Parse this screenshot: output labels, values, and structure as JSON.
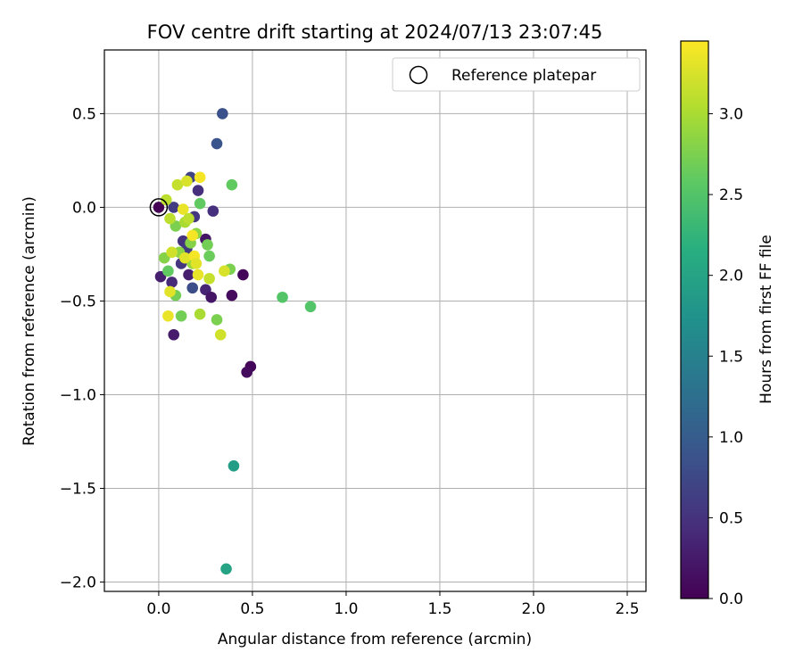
{
  "chart_data": {
    "type": "scatter",
    "title": "FOV centre drift starting at 2024/07/13 23:07:45",
    "xlabel": "Angular distance from reference (arcmin)",
    "ylabel": "Rotation from reference (arcmin)",
    "xlim": [
      -0.29,
      2.6
    ],
    "ylim": [
      -2.05,
      0.84
    ],
    "xticks": [
      0.0,
      0.5,
      1.0,
      1.5,
      2.0,
      2.5
    ],
    "xtick_labels": [
      "0.0",
      "0.5",
      "1.0",
      "1.5",
      "2.0",
      "2.5"
    ],
    "yticks": [
      0.5,
      0.0,
      -0.5,
      -1.0,
      -1.5,
      -2.0
    ],
    "ytick_labels": [
      "0.5",
      "0.0",
      "−0.5",
      "−1.0",
      "−1.5",
      "−2.0"
    ],
    "grid": true,
    "legend": {
      "label": "Reference platepar",
      "location": "upper-right",
      "marker": "open-circle"
    },
    "reference_point": {
      "x": 0.0,
      "y": 0.0
    },
    "colorbar": {
      "label": "Hours from first FF file",
      "colormap": "viridis",
      "range": [
        0.0,
        3.45
      ],
      "ticks": [
        0.0,
        0.5,
        1.0,
        1.5,
        2.0,
        2.5,
        3.0
      ],
      "tick_labels": [
        "0.0",
        "0.5",
        "1.0",
        "1.5",
        "2.0",
        "2.5",
        "3.0"
      ]
    },
    "points": [
      {
        "x": 0.0,
        "y": 0.0,
        "t": 0.0
      },
      {
        "x": 0.01,
        "y": -0.37,
        "t": 0.3
      },
      {
        "x": 0.07,
        "y": -0.4,
        "t": 0.4
      },
      {
        "x": 0.08,
        "y": -0.68,
        "t": 0.25
      },
      {
        "x": 0.08,
        "y": 0.0,
        "t": 0.6
      },
      {
        "x": 0.12,
        "y": -0.3,
        "t": 0.55
      },
      {
        "x": 0.13,
        "y": -0.18,
        "t": 0.5
      },
      {
        "x": 0.15,
        "y": -0.22,
        "t": 0.6
      },
      {
        "x": 0.17,
        "y": 0.16,
        "t": 0.7
      },
      {
        "x": 0.18,
        "y": -0.43,
        "t": 0.8
      },
      {
        "x": 0.19,
        "y": -0.05,
        "t": 0.55
      },
      {
        "x": 0.21,
        "y": 0.09,
        "t": 0.45
      },
      {
        "x": 0.16,
        "y": -0.36,
        "t": 0.3
      },
      {
        "x": 0.25,
        "y": -0.17,
        "t": 0.2
      },
      {
        "x": 0.25,
        "y": -0.44,
        "t": 0.35
      },
      {
        "x": 0.28,
        "y": -0.48,
        "t": 0.2
      },
      {
        "x": 0.29,
        "y": -0.02,
        "t": 0.45
      },
      {
        "x": 0.31,
        "y": 0.34,
        "t": 0.9
      },
      {
        "x": 0.34,
        "y": 0.5,
        "t": 0.85
      },
      {
        "x": 0.39,
        "y": -0.47,
        "t": 0.1
      },
      {
        "x": 0.45,
        "y": -0.36,
        "t": 0.05
      },
      {
        "x": 0.49,
        "y": -0.85,
        "t": 0.05
      },
      {
        "x": 0.47,
        "y": -0.88,
        "t": 0.1
      },
      {
        "x": 0.4,
        "y": -1.38,
        "t": 1.9
      },
      {
        "x": 0.36,
        "y": -1.93,
        "t": 2.0
      },
      {
        "x": 0.03,
        "y": -0.27,
        "t": 2.8
      },
      {
        "x": 0.04,
        "y": 0.04,
        "t": 3.1
      },
      {
        "x": 0.05,
        "y": -0.34,
        "t": 2.6
      },
      {
        "x": 0.09,
        "y": -0.1,
        "t": 2.75
      },
      {
        "x": 0.09,
        "y": -0.47,
        "t": 2.7
      },
      {
        "x": 0.11,
        "y": -0.24,
        "t": 2.85
      },
      {
        "x": 0.12,
        "y": -0.58,
        "t": 2.7
      },
      {
        "x": 0.14,
        "y": -0.08,
        "t": 3.0
      },
      {
        "x": 0.17,
        "y": -0.19,
        "t": 2.8
      },
      {
        "x": 0.18,
        "y": -0.3,
        "t": 2.9
      },
      {
        "x": 0.2,
        "y": -0.14,
        "t": 2.85
      },
      {
        "x": 0.22,
        "y": 0.02,
        "t": 2.6
      },
      {
        "x": 0.22,
        "y": -0.57,
        "t": 3.0
      },
      {
        "x": 0.26,
        "y": -0.2,
        "t": 2.7
      },
      {
        "x": 0.27,
        "y": -0.26,
        "t": 2.65
      },
      {
        "x": 0.31,
        "y": -0.6,
        "t": 2.75
      },
      {
        "x": 0.38,
        "y": -0.33,
        "t": 2.75
      },
      {
        "x": 0.39,
        "y": 0.12,
        "t": 2.6
      },
      {
        "x": 0.66,
        "y": -0.48,
        "t": 2.5
      },
      {
        "x": 0.81,
        "y": -0.53,
        "t": 2.5
      },
      {
        "x": 0.05,
        "y": -0.58,
        "t": 3.35
      },
      {
        "x": 0.06,
        "y": -0.45,
        "t": 3.3
      },
      {
        "x": 0.07,
        "y": -0.24,
        "t": 3.2
      },
      {
        "x": 0.1,
        "y": 0.12,
        "t": 3.15
      },
      {
        "x": 0.13,
        "y": -0.01,
        "t": 3.35
      },
      {
        "x": 0.14,
        "y": -0.27,
        "t": 3.3
      },
      {
        "x": 0.15,
        "y": 0.14,
        "t": 3.25
      },
      {
        "x": 0.16,
        "y": -0.06,
        "t": 3.1
      },
      {
        "x": 0.18,
        "y": -0.15,
        "t": 3.4
      },
      {
        "x": 0.19,
        "y": -0.26,
        "t": 3.4
      },
      {
        "x": 0.2,
        "y": -0.3,
        "t": 3.3
      },
      {
        "x": 0.21,
        "y": -0.36,
        "t": 3.35
      },
      {
        "x": 0.22,
        "y": 0.16,
        "t": 3.4
      },
      {
        "x": 0.27,
        "y": -0.38,
        "t": 3.15
      },
      {
        "x": 0.33,
        "y": -0.68,
        "t": 3.2
      },
      {
        "x": 0.35,
        "y": -0.34,
        "t": 3.25
      },
      {
        "x": 0.06,
        "y": -0.06,
        "t": 3.1
      }
    ]
  }
}
